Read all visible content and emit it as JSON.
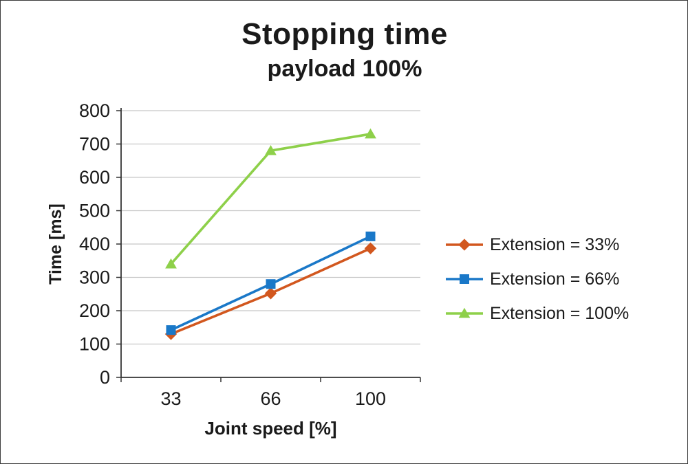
{
  "title": "Stopping time",
  "subtitle": "payload 100%",
  "chart_data": {
    "type": "line",
    "categories": [
      "33",
      "66",
      "100"
    ],
    "xlabel": "Joint speed [%]",
    "ylabel": "Time [ms]",
    "ylim": [
      0,
      800
    ],
    "ytick_step": 100,
    "grid": true,
    "legend_position": "right",
    "series": [
      {
        "name": "Extension = 33%",
        "marker": "diamond",
        "color": "#d2571e",
        "values": [
          130,
          252,
          387
        ]
      },
      {
        "name": "Extension = 66%",
        "marker": "square",
        "color": "#1a78c8",
        "values": [
          142,
          280,
          423
        ]
      },
      {
        "name": "Extension = 100%",
        "marker": "triangle",
        "color": "#8ed04a",
        "values": [
          340,
          680,
          730
        ]
      }
    ]
  },
  "colors": {
    "axis": "#333333",
    "grid": "#c6c6c6",
    "text": "#1a1a1a"
  }
}
